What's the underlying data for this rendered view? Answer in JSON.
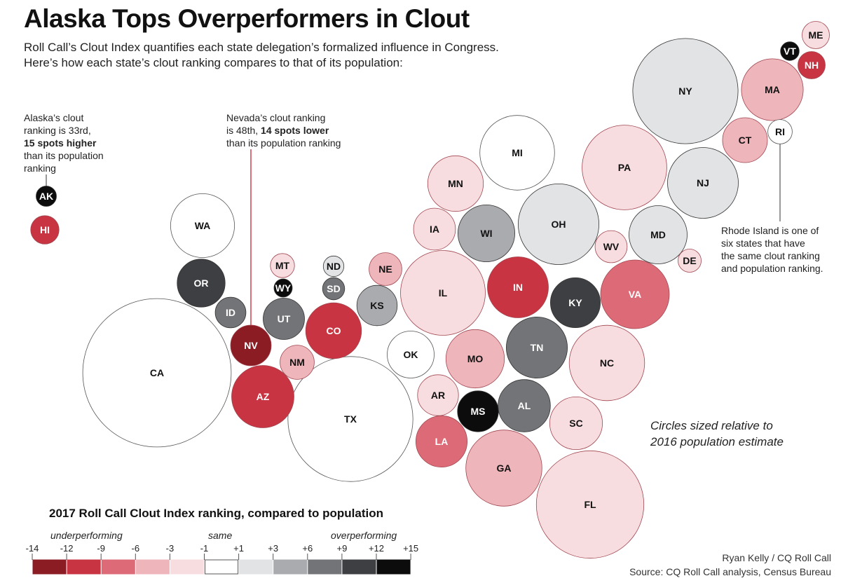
{
  "header": {
    "title": "Alaska Tops Overperformers in Clout",
    "subtitle_line1": "Roll Call’s Clout Index quantifies each state delegation’s formalized influence in Congress.",
    "subtitle_line2": "Here’s how each state’s clout ranking compares to that of its population:"
  },
  "annotations": {
    "alaska": {
      "line1": "Alaska’s clout",
      "line2": "ranking is 33rd,",
      "line3_bold": "15 spots higher",
      "line4": "than its population",
      "line5": "ranking"
    },
    "nevada": {
      "line1": "Nevada’s clout ranking",
      "line2_pre": "is 48th, ",
      "line2_bold": "14 spots lower",
      "line3": "than its population ranking"
    },
    "rhode_island": {
      "line1": "Rhode Island is one of",
      "line2": "six states that have",
      "line3": "the same clout ranking",
      "line4": "and population ranking."
    },
    "size_note_line1": "Circles sized relative to",
    "size_note_line2": "2016 population estimate"
  },
  "legend": {
    "title": "2017 Roll Call Clout Index ranking, compared to population",
    "word_under": "underperforming",
    "word_same": "same",
    "word_over": "overperforming",
    "tick_labels": [
      "-14",
      "-12",
      "-9",
      "-6",
      "-3",
      "-1",
      "+1",
      "+3",
      "+6",
      "+9",
      "+12",
      "+15"
    ],
    "colors": [
      "#8c1c24",
      "#c93442",
      "#dd6b77",
      "#eeb5bb",
      "#f8dde0",
      "#ffffff",
      "#e2e3e5",
      "#aaabae",
      "#737478",
      "#3e3f42",
      "#0c0c0d"
    ]
  },
  "credit": {
    "line1": "Ryan Kelly / CQ Roll Call",
    "line2": "Source: CQ Roll Call analysis, Census Bureau"
  },
  "chart_data": {
    "type": "bubble-cartogram",
    "title": "Alaska Tops Overperformers in Clout",
    "size_measure": "2016 population estimate",
    "color_measure": "Clout Index ranking minus population ranking (positive = overperforming)",
    "legend_bins": [
      "-14",
      "-12",
      "-9",
      "-6",
      "-3",
      "-1",
      "+1",
      "+3",
      "+6",
      "+9",
      "+12",
      "+15"
    ],
    "states": [
      {
        "code": "AK",
        "population_m": 0.74,
        "clout_rank": 33,
        "rank_diff": 15,
        "category": "+12 to +15"
      },
      {
        "code": "HI",
        "population_m": 1.43,
        "category": "-12 to -9"
      },
      {
        "code": "WA",
        "population_m": 7.29,
        "category": "same"
      },
      {
        "code": "OR",
        "population_m": 4.09,
        "category": "+9 to +12"
      },
      {
        "code": "CA",
        "population_m": 39.25,
        "category": "same"
      },
      {
        "code": "ID",
        "population_m": 1.68,
        "category": "+6 to +9"
      },
      {
        "code": "NV",
        "population_m": 2.94,
        "clout_rank": 48,
        "rank_diff": -14,
        "category": "-14 to -12"
      },
      {
        "code": "MT",
        "population_m": 1.04,
        "category": "-3 to -1"
      },
      {
        "code": "WY",
        "population_m": 0.59,
        "category": "+12 to +15"
      },
      {
        "code": "UT",
        "population_m": 3.05,
        "category": "+6 to +9"
      },
      {
        "code": "AZ",
        "population_m": 6.93,
        "category": "-12 to -9"
      },
      {
        "code": "NM",
        "population_m": 2.08,
        "category": "-6 to -3"
      },
      {
        "code": "ND",
        "population_m": 0.76,
        "category": "+1 to +3"
      },
      {
        "code": "SD",
        "population_m": 0.87,
        "category": "+6 to +9"
      },
      {
        "code": "CO",
        "population_m": 5.54,
        "category": "-12 to -9"
      },
      {
        "code": "NE",
        "population_m": 1.91,
        "category": "-6 to -3"
      },
      {
        "code": "KS",
        "population_m": 2.91,
        "category": "+3 to +6"
      },
      {
        "code": "OK",
        "population_m": 3.92,
        "category": "same"
      },
      {
        "code": "TX",
        "population_m": 27.86,
        "category": "same"
      },
      {
        "code": "MN",
        "population_m": 5.52,
        "category": "-3 to -1"
      },
      {
        "code": "IA",
        "population_m": 3.13,
        "category": "-3 to -1"
      },
      {
        "code": "WI",
        "population_m": 5.78,
        "category": "+3 to +6"
      },
      {
        "code": "IL",
        "population_m": 12.8,
        "category": "-3 to -1"
      },
      {
        "code": "MO",
        "population_m": 6.09,
        "category": "-6 to -3"
      },
      {
        "code": "AR",
        "population_m": 2.99,
        "category": "-3 to -1"
      },
      {
        "code": "LA",
        "population_m": 4.68,
        "category": "-9 to -6"
      },
      {
        "code": "MS",
        "population_m": 2.99,
        "category": "+12 to +15"
      },
      {
        "code": "AL",
        "population_m": 4.86,
        "category": "+6 to +9"
      },
      {
        "code": "TN",
        "population_m": 6.65,
        "category": "+6 to +9"
      },
      {
        "code": "KY",
        "population_m": 4.44,
        "category": "+9 to +12"
      },
      {
        "code": "IN",
        "population_m": 6.63,
        "category": "-12 to -9"
      },
      {
        "code": "MI",
        "population_m": 9.93,
        "category": "same"
      },
      {
        "code": "OH",
        "population_m": 11.61,
        "category": "+1 to +3"
      },
      {
        "code": "WV",
        "population_m": 1.83,
        "category": "-3 to -1"
      },
      {
        "code": "VA",
        "population_m": 8.41,
        "category": "-9 to -6"
      },
      {
        "code": "NC",
        "population_m": 10.15,
        "category": "-3 to -1"
      },
      {
        "code": "SC",
        "population_m": 4.96,
        "category": "-3 to -1"
      },
      {
        "code": "GA",
        "population_m": 10.31,
        "category": "-6 to -3"
      },
      {
        "code": "FL",
        "population_m": 20.61,
        "category": "-3 to -1"
      },
      {
        "code": "PA",
        "population_m": 12.78,
        "category": "-3 to -1"
      },
      {
        "code": "MD",
        "population_m": 6.02,
        "category": "+1 to +3"
      },
      {
        "code": "DE",
        "population_m": 0.95,
        "category": "-3 to -1"
      },
      {
        "code": "NJ",
        "population_m": 8.94,
        "category": "+1 to +3"
      },
      {
        "code": "NY",
        "population_m": 19.75,
        "category": "+1 to +3"
      },
      {
        "code": "CT",
        "population_m": 3.58,
        "category": "-6 to -3"
      },
      {
        "code": "RI",
        "population_m": 1.06,
        "rank_diff": 0,
        "category": "same"
      },
      {
        "code": "MA",
        "population_m": 6.81,
        "category": "-6 to -3"
      },
      {
        "code": "VT",
        "population_m": 0.62,
        "category": "+12 to +15"
      },
      {
        "code": "NH",
        "population_m": 1.33,
        "category": "-12 to -9"
      },
      {
        "code": "ME",
        "population_m": 1.33,
        "category": "-3 to -1"
      }
    ]
  }
}
